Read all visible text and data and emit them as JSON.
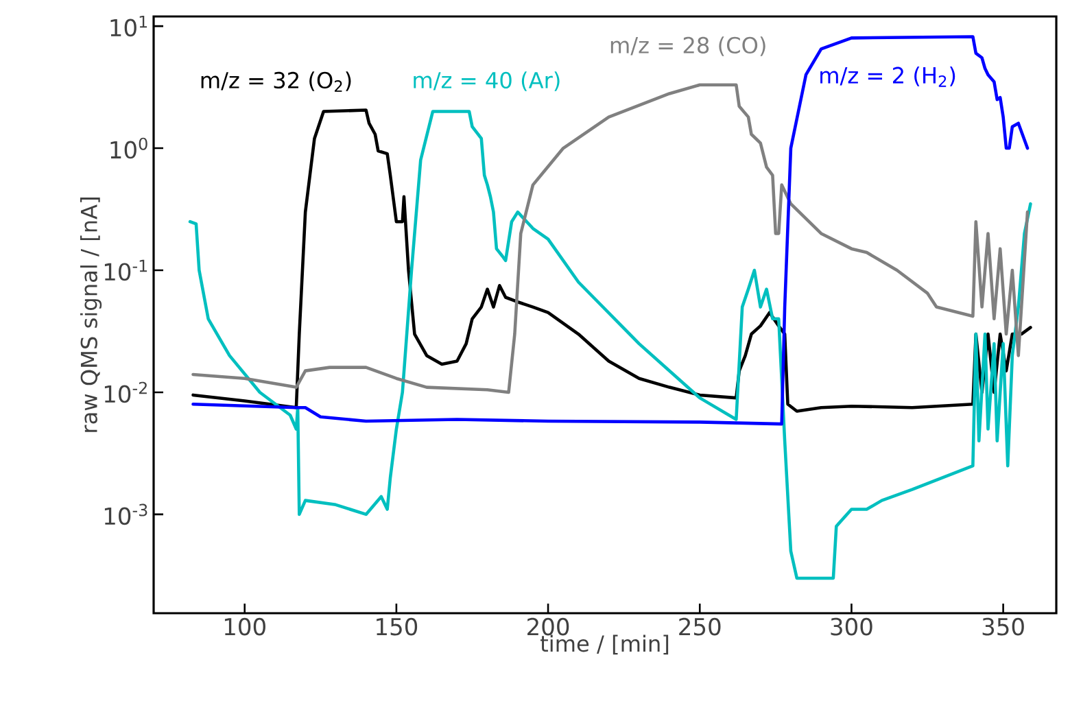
{
  "chart_data": {
    "type": "line",
    "xlabel": "time / [min]",
    "ylabel": "raw QMS signal / [nA]",
    "log": true,
    "xlim": [
      70,
      367.5
    ],
    "ylim": [
      0.000155,
      12
    ],
    "xticks": [
      100,
      150,
      200,
      250,
      300,
      350
    ],
    "yticks": [
      {
        "value": 0.001,
        "label": "10$^{-3}$"
      },
      {
        "value": 0.01,
        "label": "10$^{-2}$"
      },
      {
        "value": 0.1,
        "label": "10$^{-1}$"
      },
      {
        "value": 1,
        "label": "10$^{0}$"
      },
      {
        "value": 10,
        "label": "10$^{1}$"
      }
    ],
    "series": [
      {
        "name": "m/z = 32 (O$_{2}$)",
        "color": "#000000",
        "x": [
          83,
          100,
          117,
          118,
          120,
          123,
          126,
          140,
          141,
          143,
          144,
          147,
          148,
          150,
          152,
          152.5,
          154,
          156,
          160,
          165,
          170,
          173,
          175,
          178,
          180,
          182,
          184,
          186,
          190,
          195,
          200,
          210,
          220,
          230,
          240,
          250,
          262,
          263,
          265,
          267,
          270,
          273,
          276,
          278,
          279,
          282,
          290,
          300,
          320,
          340,
          341,
          343,
          345,
          347,
          349,
          351,
          353,
          356,
          359
        ],
        "values": [
          0.0095,
          0.0085,
          0.0075,
          0.03,
          0.3,
          1.2,
          2.0,
          2.05,
          1.6,
          1.3,
          0.95,
          0.9,
          0.6,
          0.25,
          0.25,
          0.4,
          0.1,
          0.03,
          0.02,
          0.017,
          0.018,
          0.025,
          0.04,
          0.05,
          0.07,
          0.05,
          0.075,
          0.06,
          0.055,
          0.05,
          0.045,
          0.03,
          0.018,
          0.013,
          0.011,
          0.0095,
          0.009,
          0.015,
          0.02,
          0.03,
          0.035,
          0.045,
          0.035,
          0.03,
          0.008,
          0.007,
          0.0075,
          0.0077,
          0.0075,
          0.008,
          0.03,
          0.01,
          0.03,
          0.01,
          0.03,
          0.015,
          0.03,
          0.03,
          0.034
        ]
      },
      {
        "name": "m/z = 40 (Ar)",
        "color": "#00bfbf",
        "x": [
          82,
          84,
          85,
          88,
          95,
          105,
          115,
          117,
          117.5,
          118,
          120,
          130,
          140,
          145,
          147,
          148,
          150,
          152,
          155,
          158,
          162,
          174,
          175,
          178,
          179,
          180,
          181,
          182,
          183,
          185,
          186,
          188,
          190,
          195,
          200,
          210,
          230,
          250,
          262,
          264,
          266,
          268,
          270,
          272,
          274,
          276,
          278,
          280,
          282,
          290,
          294,
          295,
          300,
          305,
          310,
          320,
          330,
          340,
          341,
          342,
          344,
          345,
          347,
          348,
          350,
          351.5,
          353,
          355,
          357,
          359
        ],
        "values": [
          0.25,
          0.24,
          0.1,
          0.04,
          0.02,
          0.01,
          0.0065,
          0.005,
          0.0075,
          0.001,
          0.0013,
          0.0012,
          0.001,
          0.0014,
          0.0011,
          0.002,
          0.005,
          0.01,
          0.1,
          0.8,
          2.0,
          2.0,
          1.5,
          1.2,
          0.6,
          0.5,
          0.4,
          0.3,
          0.15,
          0.13,
          0.12,
          0.25,
          0.3,
          0.22,
          0.18,
          0.08,
          0.025,
          0.009,
          0.006,
          0.05,
          0.07,
          0.1,
          0.05,
          0.07,
          0.04,
          0.04,
          0.004,
          0.0005,
          0.0003,
          0.0003,
          0.0003,
          0.0008,
          0.0011,
          0.0011,
          0.0013,
          0.0016,
          0.002,
          0.0025,
          0.03,
          0.004,
          0.03,
          0.005,
          0.025,
          0.004,
          0.025,
          0.0025,
          0.02,
          0.05,
          0.2,
          0.35
        ]
      },
      {
        "name": "m/z = 28 (CO)",
        "color": "#808080",
        "x": [
          83,
          100,
          117,
          120,
          128,
          140,
          150,
          160,
          180,
          187,
          189,
          191,
          195,
          205,
          220,
          240,
          250,
          262,
          263,
          266,
          267,
          270,
          272,
          274,
          275,
          276,
          277,
          280,
          290,
          300,
          305,
          315,
          325,
          328,
          340,
          341,
          343,
          345,
          347,
          349,
          351,
          353,
          355,
          358
        ],
        "values": [
          0.014,
          0.013,
          0.011,
          0.015,
          0.016,
          0.016,
          0.013,
          0.011,
          0.0105,
          0.01,
          0.03,
          0.2,
          0.5,
          1.0,
          1.8,
          2.8,
          3.3,
          3.3,
          2.2,
          1.8,
          1.3,
          1.1,
          0.7,
          0.6,
          0.2,
          0.2,
          0.5,
          0.35,
          0.2,
          0.15,
          0.14,
          0.1,
          0.065,
          0.05,
          0.042,
          0.25,
          0.05,
          0.2,
          0.04,
          0.15,
          0.03,
          0.1,
          0.02,
          0.3
        ]
      },
      {
        "name": "m/z = 2 (H$_{2}$)",
        "color": "#0000ff",
        "x": [
          83,
          117,
          120,
          125,
          140,
          170,
          200,
          250,
          277,
          278,
          280,
          285,
          290,
          300,
          340,
          341,
          343,
          344,
          345,
          347,
          348,
          349,
          350,
          351,
          352,
          353,
          355,
          358
        ],
        "values": [
          0.008,
          0.0075,
          0.0075,
          0.0063,
          0.0058,
          0.006,
          0.0058,
          0.0057,
          0.0055,
          0.05,
          1.0,
          4,
          6.5,
          8.0,
          8.2,
          6.0,
          5.5,
          4.5,
          4.0,
          3.5,
          2.5,
          2.6,
          1.8,
          1.0,
          1.0,
          1.5,
          1.6,
          1.0
        ]
      }
    ]
  }
}
